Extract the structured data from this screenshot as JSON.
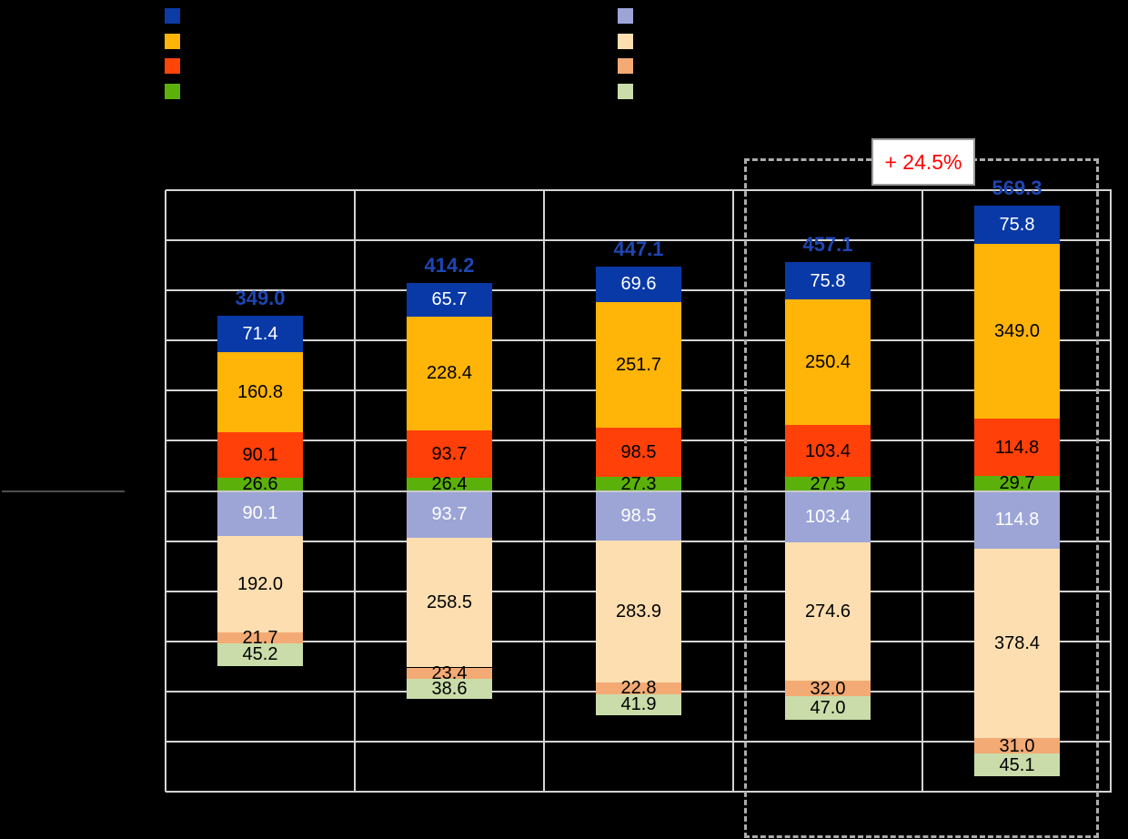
{
  "legend_left": {
    "swatches": [
      {
        "name": "dark-blue",
        "color": "#0B3BA5"
      },
      {
        "name": "amber",
        "color": "#FFB408"
      },
      {
        "name": "red-orange",
        "color": "#FF4408"
      },
      {
        "name": "green",
        "color": "#5BB10A"
      }
    ]
  },
  "legend_right": {
    "swatches": [
      {
        "name": "periwinkle",
        "color": "#9CA5D6"
      },
      {
        "name": "cream",
        "color": "#FCDEB0"
      },
      {
        "name": "soft-orange",
        "color": "#F3AA74"
      },
      {
        "name": "soft-green",
        "color": "#CADCA9"
      }
    ]
  },
  "annotation": {
    "growth_label": "+ 24.5%",
    "growth_color": "#FF0000"
  },
  "chart_data": {
    "type": "bar",
    "stacked": true,
    "orientation": "vertical",
    "n_categories": 5,
    "categories": [
      "",
      "",
      "",
      "",
      ""
    ],
    "totals": [
      349.0,
      414.2,
      447.1,
      457.1,
      569.3
    ],
    "totals_color": "#1E46B4",
    "positive_series": [
      {
        "name": "green",
        "color": "#5BB10A",
        "label_color": "#000000",
        "values": [
          26.6,
          26.4,
          27.3,
          27.5,
          29.7
        ]
      },
      {
        "name": "red-orange",
        "color": "#FF4008",
        "label_color": "#000000",
        "values": [
          90.1,
          93.7,
          98.5,
          103.4,
          114.8
        ]
      },
      {
        "name": "amber",
        "color": "#FFB408",
        "label_color": "#000000",
        "values": [
          160.8,
          228.4,
          251.7,
          250.4,
          349.0
        ]
      },
      {
        "name": "dark-blue",
        "color": "#0839A6",
        "label_color": "#FFFFFF",
        "values": [
          71.4,
          65.7,
          69.6,
          75.8,
          75.8
        ]
      }
    ],
    "negative_series": [
      {
        "name": "periwinkle",
        "color": "#9CA5D6",
        "label_color": "#FFFFFF",
        "values": [
          90.1,
          93.7,
          98.5,
          103.4,
          114.8
        ]
      },
      {
        "name": "cream",
        "color": "#FCDEB0",
        "label_color": "#000000",
        "values": [
          192.0,
          258.5,
          283.9,
          274.6,
          378.4
        ]
      },
      {
        "name": "soft-orange",
        "color": "#F3AA74",
        "label_color": "#000000",
        "values": [
          21.7,
          23.4,
          22.8,
          32.0,
          31.0
        ]
      },
      {
        "name": "soft-green",
        "color": "#CADCA9",
        "label_color": "#000000",
        "values": [
          45.2,
          38.6,
          41.9,
          47.0,
          45.1
        ]
      }
    ],
    "axis": {
      "ymin": -600,
      "ymax": 600,
      "grid_step": 100,
      "grid": true,
      "tick_labels_visible": false
    },
    "highlight": {
      "label": "+ 24.5%",
      "label_color": "#FF0000",
      "applies_to": [
        "category-4",
        "category-5"
      ]
    }
  }
}
